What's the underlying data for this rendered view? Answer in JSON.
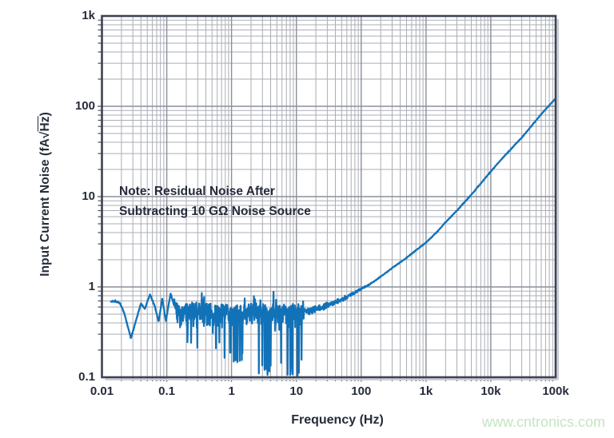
{
  "watermark": {
    "text": "www.cntronics.com",
    "color": "#c3e6c0"
  },
  "chart_data": {
    "type": "line",
    "title": "",
    "xlabel": "Frequency (Hz)",
    "ylabel": "Input Current Noise (fA√Hz)",
    "ylabel_prefix": "Input Current Noise (fA",
    "ylabel_radical": "√",
    "ylabel_radicand": "Hz",
    "ylabel_suffix": ")",
    "x_scale": "log",
    "y_scale": "log",
    "xlim": [
      0.01,
      100000
    ],
    "ylim": [
      0.1,
      1000
    ],
    "grid": true,
    "legend": "none",
    "xticks": [
      {
        "value": 0.01,
        "label": "0.01"
      },
      {
        "value": 0.1,
        "label": "0.1"
      },
      {
        "value": 1,
        "label": "1"
      },
      {
        "value": 10,
        "label": "10"
      },
      {
        "value": 100,
        "label": "100"
      },
      {
        "value": 1000,
        "label": "1k"
      },
      {
        "value": 10000,
        "label": "10k"
      },
      {
        "value": 100000,
        "label": "100k"
      }
    ],
    "yticks": [
      {
        "value": 1000,
        "label": "1k"
      },
      {
        "value": 100,
        "label": "100"
      },
      {
        "value": 10,
        "label": "10"
      },
      {
        "value": 1,
        "label": "1"
      },
      {
        "value": 0.1,
        "label": "0.1"
      }
    ],
    "annotation": {
      "line1": "Note: Residual Noise After",
      "line2": "Subtracting 10 GΩ Noise Source"
    },
    "colors": {
      "curve": "#1272b8",
      "text": "#262b3a",
      "grid_major": "#8b8f9a",
      "grid_minor": "#abaeb6",
      "frame": "#3d4353",
      "tick_mark": "#4a4f5e",
      "frame_shadow": "#cbced5"
    },
    "series": [
      {
        "name": "input-current-noise",
        "color": "#1272b8",
        "start_hz": 0.0138,
        "end_hz": 100000,
        "median_anchors": [
          [
            0.0138,
            0.69
          ],
          [
            0.016,
            0.7
          ],
          [
            0.019,
            0.66
          ],
          [
            0.022,
            0.52
          ],
          [
            0.028,
            0.27
          ],
          [
            0.034,
            0.44
          ],
          [
            0.04,
            0.66
          ],
          [
            0.046,
            0.57
          ],
          [
            0.055,
            0.83
          ],
          [
            0.065,
            0.62
          ],
          [
            0.075,
            0.41
          ],
          [
            0.085,
            0.75
          ],
          [
            0.097,
            0.42
          ],
          [
            0.115,
            0.85
          ],
          [
            0.13,
            0.62
          ],
          [
            0.16,
            0.5
          ],
          [
            0.2,
            0.56
          ],
          [
            0.3,
            0.55
          ],
          [
            0.5,
            0.55
          ],
          [
            0.8,
            0.54
          ],
          [
            1.3,
            0.52
          ],
          [
            2,
            0.54
          ],
          [
            3,
            0.53
          ],
          [
            5,
            0.55
          ],
          [
            8,
            0.54
          ],
          [
            11,
            0.55
          ],
          [
            13,
            0.55
          ],
          [
            16,
            0.55
          ],
          [
            20,
            0.57
          ],
          [
            30,
            0.63
          ],
          [
            50,
            0.72
          ],
          [
            70,
            0.82
          ],
          [
            100,
            0.95
          ],
          [
            150,
            1.12
          ],
          [
            200,
            1.3
          ],
          [
            300,
            1.62
          ],
          [
            500,
            2.1
          ],
          [
            700,
            2.55
          ],
          [
            1000,
            3.1
          ],
          [
            1500,
            4.1
          ],
          [
            2000,
            5.2
          ],
          [
            3000,
            7.0
          ],
          [
            5000,
            10.5
          ],
          [
            7000,
            14
          ],
          [
            10000,
            19
          ],
          [
            15000,
            26.5
          ],
          [
            20000,
            33
          ],
          [
            30000,
            45
          ],
          [
            50000,
            70
          ],
          [
            70000,
            93
          ],
          [
            100000,
            122
          ]
        ],
        "noise": {
          "seed": 1337,
          "samples": 1700,
          "calm_end_hz": 0.13,
          "rough_end_hz": 13,
          "taper_end_hz": 150,
          "calm_amp": 0.012,
          "rough_amp_up": 0.14,
          "rough_amp_down": 0.26,
          "taper_amp": 0.07,
          "smooth_amp": 0.0065,
          "spike_prob_min": 0.025,
          "spike_prob_max": 0.08,
          "spike_floor_min": 0.1,
          "spike_floor_max": 0.24,
          "upspike_prob": 0.02,
          "upspike_amp": 0.21
        }
      }
    ]
  }
}
